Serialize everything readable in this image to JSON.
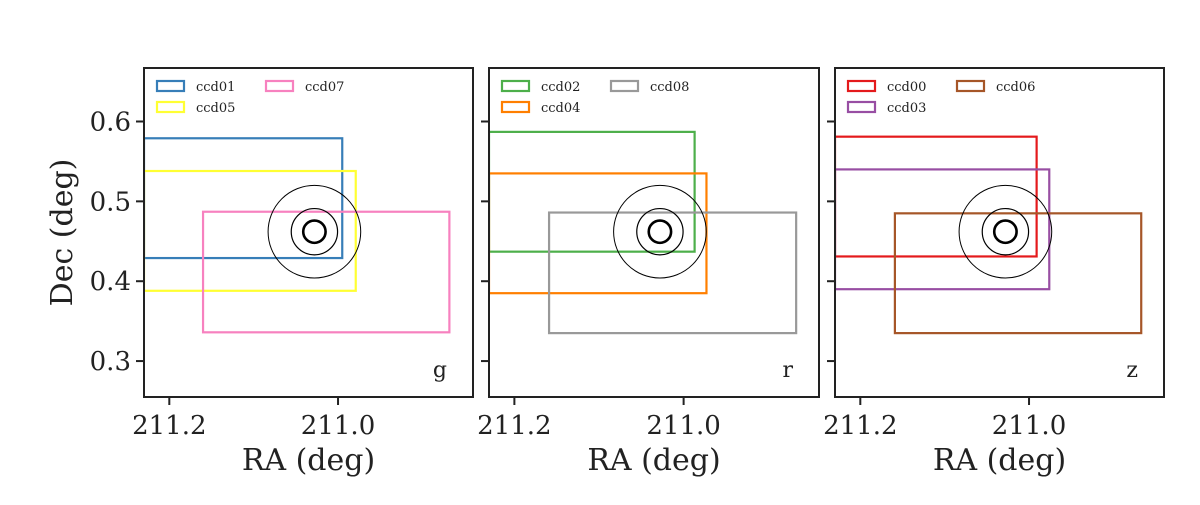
{
  "chart_data": [
    {
      "type": "rectangles",
      "band_label": "g",
      "xlabel": "RA (deg)",
      "ylabel": "Dec (deg)",
      "xlim": [
        211.23,
        210.84
      ],
      "ylim": [
        0.255,
        0.667
      ],
      "xticks": [
        {
          "value": 211.2,
          "label": "211.2"
        },
        {
          "value": 211.0,
          "label": "211.0"
        }
      ],
      "yticks": [
        {
          "value": 0.6,
          "label": "0.6"
        },
        {
          "value": 0.5,
          "label": "0.5"
        },
        {
          "value": 0.4,
          "label": "0.4"
        },
        {
          "value": 0.3,
          "label": "0.3"
        }
      ],
      "series": [
        {
          "name": "ccd01",
          "color": "#377eb8",
          "ra_min": 210.995,
          "ra_max": 211.23,
          "dec_min": 0.429,
          "dec_max": 0.579
        },
        {
          "name": "ccd05",
          "color": "#ffff33",
          "ra_min": 210.979,
          "ra_max": 211.23,
          "dec_min": 0.388,
          "dec_max": 0.538
        },
        {
          "name": "ccd07",
          "color": "#f781bf",
          "ra_min": 210.868,
          "ra_max": 211.16,
          "dec_min": 0.336,
          "dec_max": 0.487
        }
      ],
      "target": {
        "ra": 211.028,
        "dec": 0.462,
        "radii": [
          0.014,
          0.029,
          0.058
        ]
      }
    },
    {
      "type": "rectangles",
      "band_label": "r",
      "xlabel": "RA (deg)",
      "ylabel": "",
      "xlim": [
        211.23,
        210.84
      ],
      "ylim": [
        0.255,
        0.667
      ],
      "xticks": [
        {
          "value": 211.2,
          "label": "211.2"
        },
        {
          "value": 211.0,
          "label": "211.0"
        }
      ],
      "yticks": [
        {
          "value": 0.6,
          "label": ""
        },
        {
          "value": 0.5,
          "label": ""
        },
        {
          "value": 0.4,
          "label": ""
        },
        {
          "value": 0.3,
          "label": ""
        }
      ],
      "series": [
        {
          "name": "ccd02",
          "color": "#4daf4a",
          "ra_min": 210.987,
          "ra_max": 211.23,
          "dec_min": 0.437,
          "dec_max": 0.587
        },
        {
          "name": "ccd04",
          "color": "#ff7f00",
          "ra_min": 210.973,
          "ra_max": 211.23,
          "dec_min": 0.385,
          "dec_max": 0.535
        },
        {
          "name": "ccd08",
          "color": "#999999",
          "ra_min": 210.867,
          "ra_max": 211.159,
          "dec_min": 0.335,
          "dec_max": 0.486
        }
      ],
      "target": {
        "ra": 211.028,
        "dec": 0.462,
        "radii": [
          0.014,
          0.029,
          0.058
        ]
      }
    },
    {
      "type": "rectangles",
      "band_label": "z",
      "xlabel": "RA (deg)",
      "ylabel": "",
      "xlim": [
        211.23,
        210.84
      ],
      "ylim": [
        0.255,
        0.667
      ],
      "xticks": [
        {
          "value": 211.2,
          "label": "211.2"
        },
        {
          "value": 211.0,
          "label": "211.0"
        }
      ],
      "yticks": [
        {
          "value": 0.6,
          "label": ""
        },
        {
          "value": 0.5,
          "label": ""
        },
        {
          "value": 0.4,
          "label": ""
        },
        {
          "value": 0.3,
          "label": ""
        }
      ],
      "series": [
        {
          "name": "ccd00",
          "color": "#e41a1c",
          "ra_min": 210.991,
          "ra_max": 211.23,
          "dec_min": 0.431,
          "dec_max": 0.581
        },
        {
          "name": "ccd03",
          "color": "#984ea3",
          "ra_min": 210.976,
          "ra_max": 211.23,
          "dec_min": 0.39,
          "dec_max": 0.54
        },
        {
          "name": "ccd06",
          "color": "#a65628",
          "ra_min": 210.867,
          "ra_max": 211.159,
          "dec_min": 0.335,
          "dec_max": 0.485
        }
      ],
      "target": {
        "ra": 211.028,
        "dec": 0.462,
        "radii": [
          0.014,
          0.029,
          0.058
        ]
      }
    }
  ]
}
